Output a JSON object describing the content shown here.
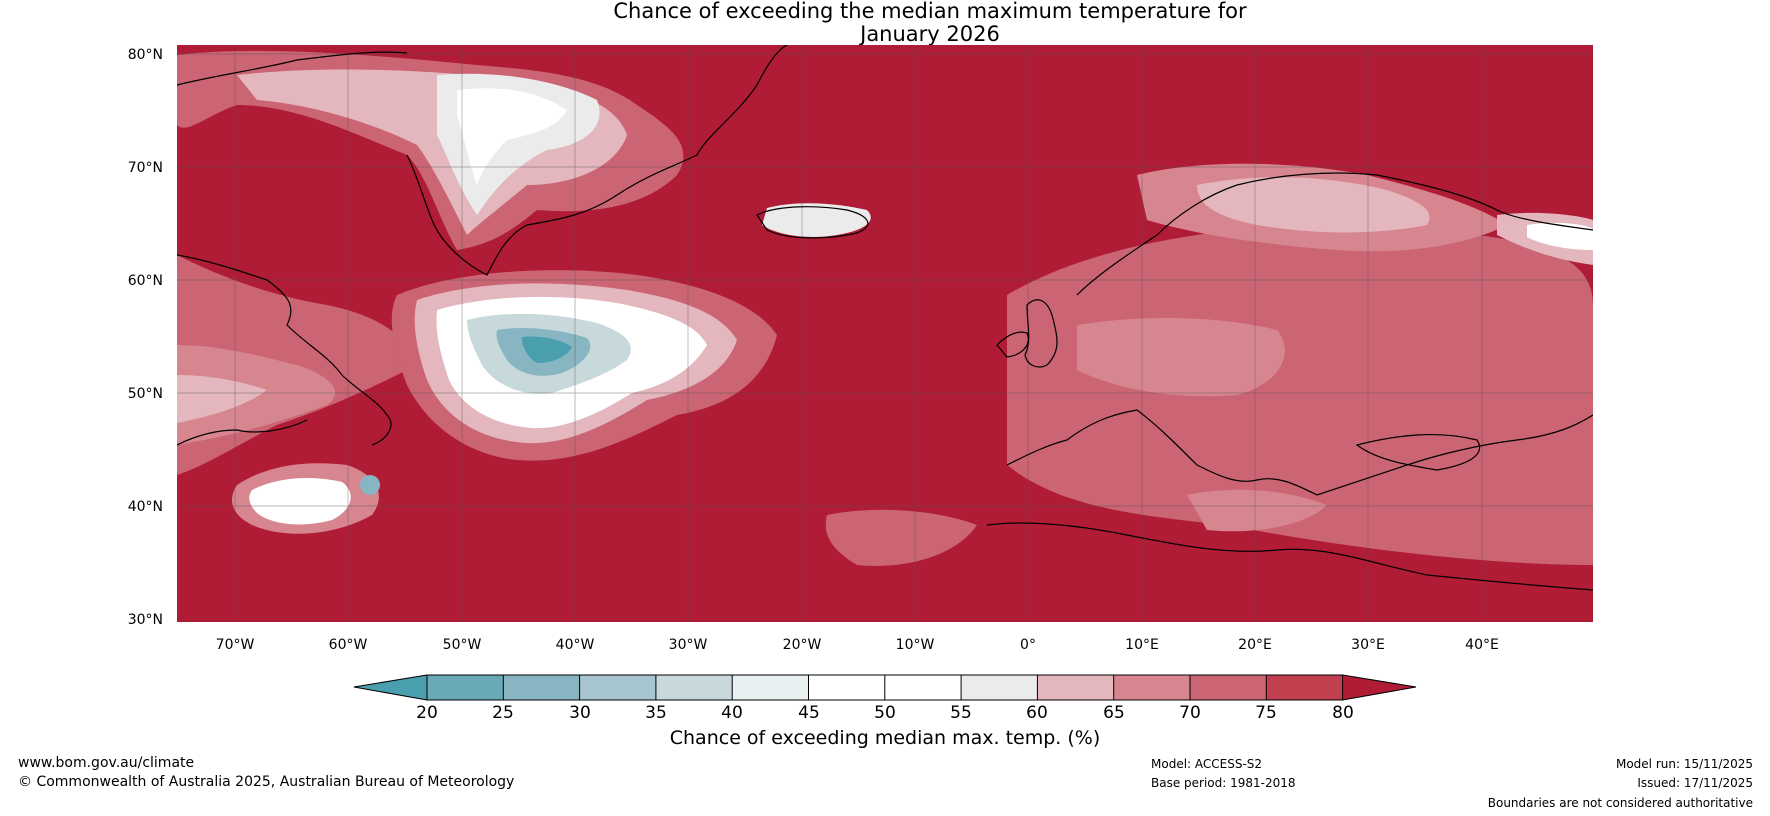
{
  "title_line1": "Chance of exceeding the median maximum temperature for",
  "title_line2": "January 2026",
  "lat_labels": [
    "80°N",
    "70°N",
    "60°N",
    "50°N",
    "40°N",
    "30°N"
  ],
  "lon_labels": [
    "70°W",
    "60°W",
    "50°W",
    "40°W",
    "30°W",
    "20°W",
    "10°W",
    "0°",
    "10°E",
    "20°E",
    "30°E",
    "40°E"
  ],
  "colorbar": {
    "ticks": [
      "20",
      "25",
      "30",
      "35",
      "40",
      "45",
      "50",
      "55",
      "60",
      "65",
      "70",
      "75",
      "80"
    ],
    "label": "Chance of exceeding median max. temp. (%)",
    "colors": {
      "below20": "#4a9fae",
      "c20_25": "#6aaab8",
      "c25_30": "#87b5c2",
      "c30_35": "#a8c6cf",
      "c35_40": "#c8d9dc",
      "c40_45": "#e8f0f1",
      "c45_50": "#ffffff",
      "c50_55": "#ffffff",
      "c55_60": "#ecebec",
      "c60_65": "#e3b7bd",
      "c65_70": "#d7868f",
      "c70_75": "#cb6473",
      "c75_80": "#c0404f",
      "above80": "#b01b36"
    }
  },
  "footer": {
    "website": "www.bom.gov.au/climate",
    "copyright": "© Commonwealth of Australia 2025, Australian Bureau of Meteorology",
    "model": "Model: ACCESS-S2",
    "base_period": "Base period: 1981-2018",
    "model_run": "Model run: 15/11/2025",
    "issued": "Issued: 17/11/2025",
    "boundaries": "Boundaries are not considered authoritative"
  }
}
